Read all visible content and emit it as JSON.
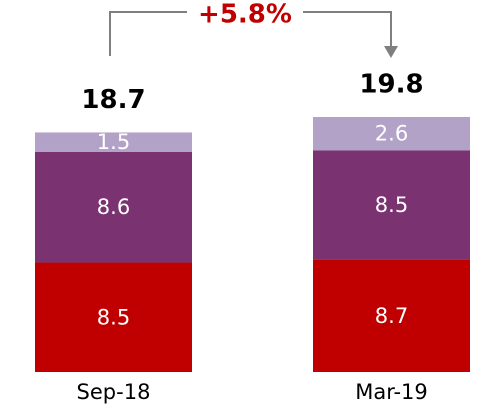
{
  "chart_data": {
    "type": "stacked_bar",
    "categories": [
      "Sep-18",
      "Mar-19"
    ],
    "series": [
      {
        "color": "#c00000",
        "values": [
          8.5,
          8.7
        ]
      },
      {
        "color": "#7b3270",
        "values": [
          8.6,
          8.5
        ]
      },
      {
        "color": "#b3a2c7",
        "values": [
          1.5,
          2.6
        ]
      }
    ],
    "totals": [
      18.7,
      19.8
    ],
    "annotation": "+5.8%"
  }
}
